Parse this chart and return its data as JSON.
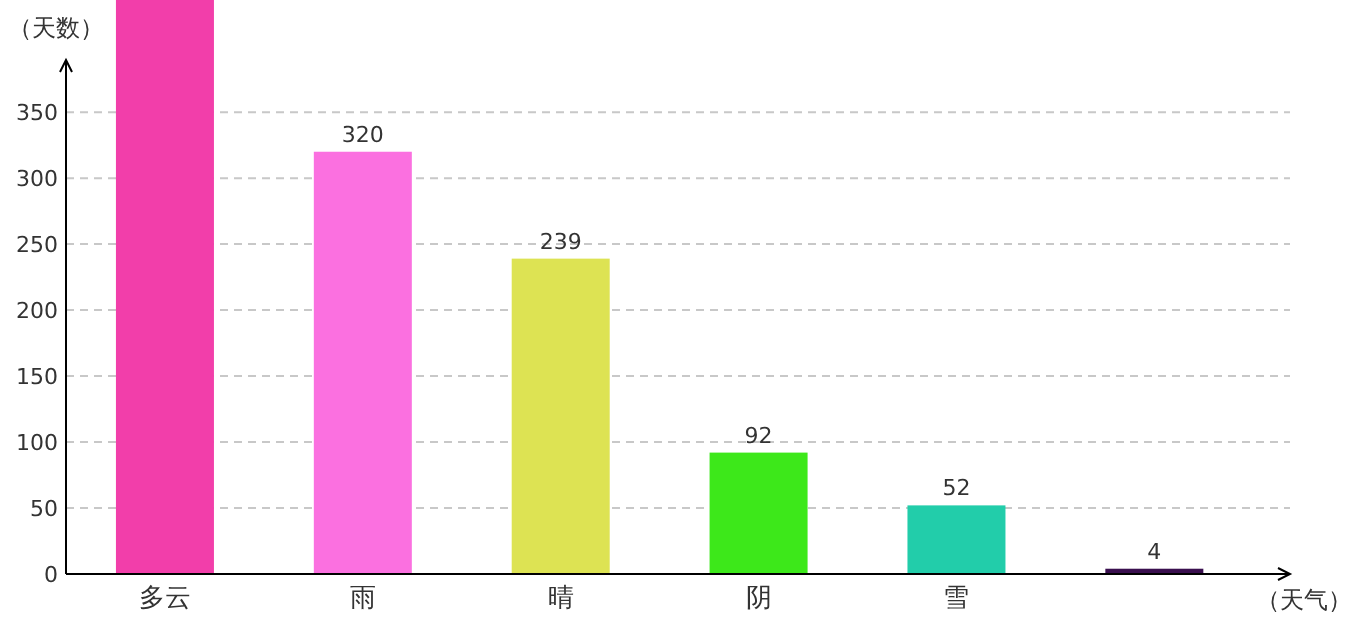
{
  "chart_data": {
    "type": "bar",
    "ylabel": "（天数）",
    "xlabel": "（天气）",
    "categories": [
      "多云",
      "雨",
      "晴",
      "阴",
      "雪",
      null
    ],
    "values": [
      435,
      320,
      239,
      92,
      52,
      4
    ],
    "colors": [
      "#f23eaa",
      "#fb70e0",
      "#dde353",
      "#3de81a",
      "#22cdaa",
      "#3a0f4f"
    ],
    "value_labels": [
      null,
      "320",
      "239",
      "92",
      "52",
      "4"
    ],
    "ylim": [
      0,
      435
    ],
    "yticks": [
      0,
      50,
      100,
      150,
      200,
      250,
      300,
      350
    ],
    "grid": "y"
  }
}
